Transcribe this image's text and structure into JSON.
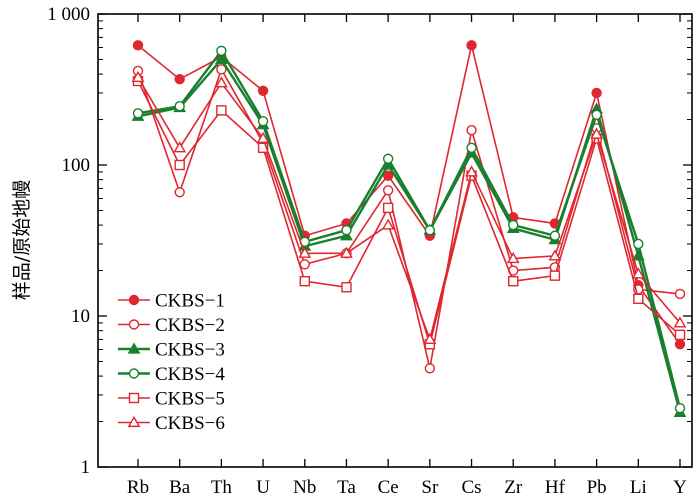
{
  "chart_data": {
    "type": "line",
    "ylabel": "样品/原始地幔",
    "xlabel": "",
    "yscale": "log",
    "ylim": [
      1,
      1000
    ],
    "ytick_labels": [
      "1",
      "10",
      "100",
      "1 000"
    ],
    "yticks": [
      1,
      10,
      100,
      1000
    ],
    "categories": [
      "Rb",
      "Ba",
      "Th",
      "U",
      "Nb",
      "Ta",
      "Ce",
      "Sr",
      "Cs",
      "Zr",
      "Hf",
      "Pb",
      "Li",
      "Y"
    ],
    "legend_position": "lower-left",
    "grid": false,
    "series": [
      {
        "name": "CKBS−1",
        "color": "#e0262f",
        "marker": "filled-circle",
        "values": [
          620,
          370,
          520,
          310,
          34,
          41,
          85,
          34,
          620,
          45,
          41,
          300,
          16,
          6.5
        ]
      },
      {
        "name": "CKBS−2",
        "color": "#e0262f",
        "marker": "open-circle",
        "values": [
          420,
          66,
          430,
          140,
          22,
          26,
          68,
          4.5,
          170,
          20,
          21,
          175,
          15,
          14
        ]
      },
      {
        "name": "CKBS−3",
        "color": "#1a7f2e",
        "marker": "filled-triangle",
        "values": [
          210,
          240,
          500,
          185,
          29,
          34,
          100,
          37,
          120,
          38,
          32,
          235,
          25,
          2.3
        ]
      },
      {
        "name": "CKBS−4",
        "color": "#1a7f2e",
        "marker": "open-circle",
        "values": [
          220,
          245,
          570,
          195,
          31,
          37,
          110,
          37,
          130,
          40,
          34,
          215,
          30,
          2.45
        ]
      },
      {
        "name": "CKBS−5",
        "color": "#e0262f",
        "marker": "open-square",
        "values": [
          360,
          100,
          230,
          130,
          17,
          15.5,
          52,
          6.5,
          85,
          17,
          18.5,
          150,
          13,
          7.5
        ]
      },
      {
        "name": "CKBS−6",
        "color": "#e0262f",
        "marker": "open-triangle",
        "values": [
          380,
          130,
          350,
          150,
          26,
          26,
          40,
          7,
          90,
          24,
          25,
          160,
          19,
          9
        ]
      }
    ]
  }
}
